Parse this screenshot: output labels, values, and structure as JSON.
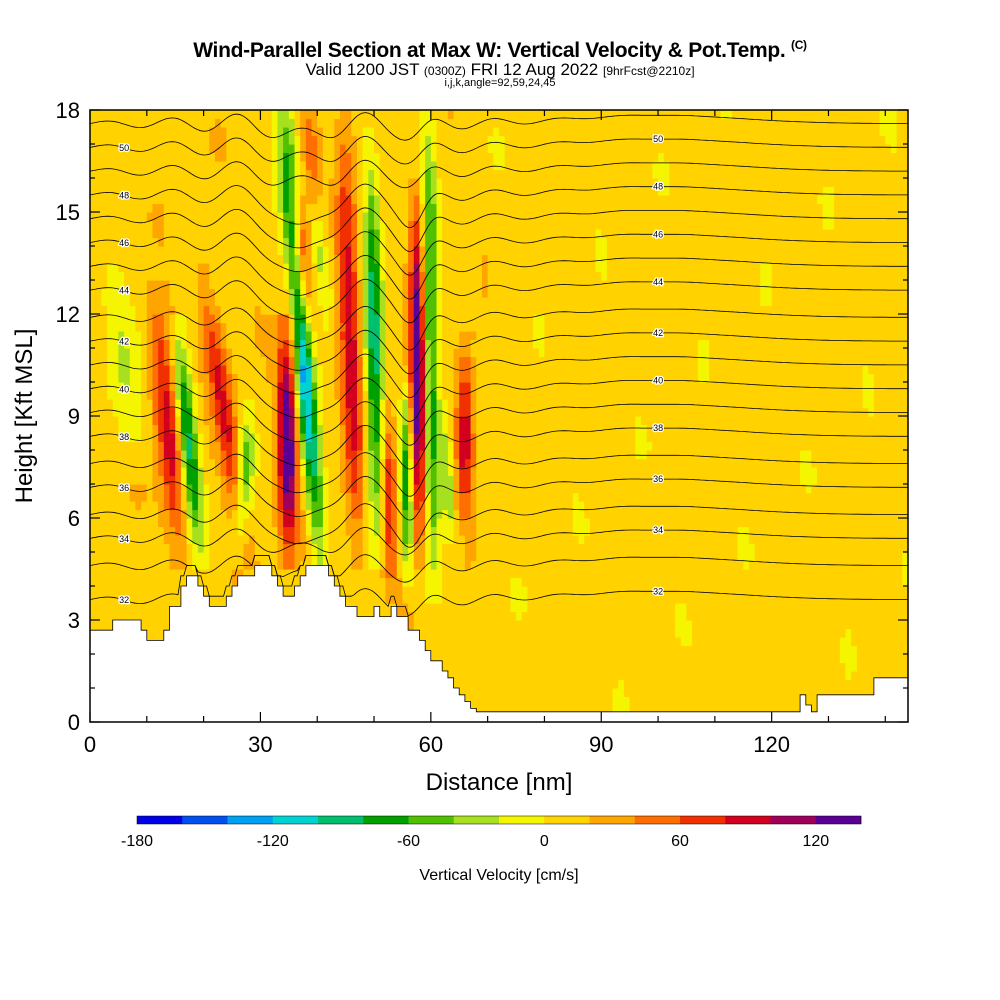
{
  "header": {
    "title_main": "Wind-Parallel Section at Max W: Vertical Velocity & Pot.Temp.",
    "title_mark": "(C)",
    "subtitle_a": "Valid 1200 JST",
    "subtitle_b": "(0300Z)",
    "subtitle_c": "FRI 12 Aug 2022",
    "subtitle_d": "[9hrFcst@2210z]",
    "line3": "i,j,k,angle=92,59,24,45"
  },
  "chart_data": {
    "type": "heatmap",
    "xlabel": "Distance [nm]",
    "ylabel": "Height [Kft MSL]",
    "xlim": [
      0,
      144
    ],
    "ylim": [
      0,
      18
    ],
    "xticks": [
      0,
      30,
      60,
      90,
      120
    ],
    "yticks": [
      0,
      3,
      6,
      9,
      12,
      15,
      18
    ],
    "colorbar": {
      "label": "Vertical Velocity [cm/s]",
      "ticks": [
        -180,
        -120,
        -60,
        0,
        60,
        120
      ],
      "range": [
        -180,
        140
      ],
      "colors": [
        "#0000e6",
        "#0050f0",
        "#00a0f5",
        "#00d2d2",
        "#00c070",
        "#00a000",
        "#50c000",
        "#a6e01e",
        "#f5f500",
        "#ffd200",
        "#ffa500",
        "#ff6e00",
        "#f03000",
        "#d2001e",
        "#a0005a",
        "#5a0096"
      ]
    },
    "terrain": [
      [
        0,
        2.7
      ],
      [
        3,
        2.7
      ],
      [
        4,
        3.0
      ],
      [
        8,
        3.0
      ],
      [
        9,
        2.7
      ],
      [
        10,
        2.4
      ],
      [
        12,
        2.4
      ],
      [
        13,
        2.7
      ],
      [
        14,
        3.4
      ],
      [
        15,
        3.4
      ],
      [
        16,
        4.0
      ],
      [
        17,
        4.3
      ],
      [
        18,
        4.3
      ],
      [
        19,
        4.0
      ],
      [
        20,
        3.7
      ],
      [
        21,
        3.4
      ],
      [
        23,
        3.4
      ],
      [
        24,
        3.7
      ],
      [
        25,
        4.0
      ],
      [
        26,
        4.3
      ],
      [
        28,
        4.3
      ],
      [
        29,
        4.6
      ],
      [
        31,
        4.6
      ],
      [
        32,
        4.3
      ],
      [
        33,
        4.0
      ],
      [
        34,
        3.7
      ],
      [
        35,
        3.7
      ],
      [
        36,
        4.0
      ],
      [
        37,
        4.3
      ],
      [
        38,
        4.6
      ],
      [
        41,
        4.6
      ],
      [
        42,
        4.3
      ],
      [
        43,
        4.0
      ],
      [
        44,
        3.7
      ],
      [
        45,
        3.4
      ],
      [
        46,
        3.4
      ],
      [
        47,
        3.1
      ],
      [
        49,
        3.1
      ],
      [
        50,
        3.4
      ],
      [
        51,
        3.1
      ],
      [
        52,
        3.1
      ],
      [
        53,
        3.4
      ],
      [
        54,
        3.1
      ],
      [
        55,
        3.1
      ],
      [
        56,
        2.7
      ],
      [
        57,
        2.7
      ],
      [
        58,
        2.4
      ],
      [
        59,
        2.1
      ],
      [
        60,
        1.8
      ],
      [
        62,
        1.5
      ],
      [
        63,
        1.3
      ],
      [
        64,
        1.0
      ],
      [
        65,
        0.8
      ],
      [
        66,
        0.6
      ],
      [
        67,
        0.4
      ],
      [
        68,
        0.3
      ],
      [
        124,
        0.3
      ],
      [
        125,
        0.8
      ],
      [
        126,
        0.5
      ],
      [
        127,
        0.3
      ],
      [
        128,
        0.8
      ],
      [
        138,
        1.3
      ],
      [
        144,
        1.3
      ]
    ],
    "updrafts": [
      {
        "x0": 16.2,
        "y0": 4.8,
        "x1": 11.5,
        "y1": 12.5,
        "w": 2.3,
        "peak": 85
      },
      {
        "x0": 27.5,
        "y0": 5.0,
        "x1": 20.0,
        "y1": 13.0,
        "w": 2.0,
        "peak": 75
      },
      {
        "x0": 35.0,
        "y0": 5.0,
        "x1": 34.5,
        "y1": 11.5,
        "w": 1.7,
        "peak": 130
      },
      {
        "x0": 36.5,
        "y0": 11.0,
        "x1": 38.5,
        "y1": 18.0,
        "w": 2.3,
        "peak": 85
      },
      {
        "x0": 47.0,
        "y0": 5.0,
        "x1": 44.5,
        "y1": 18.0,
        "w": 1.8,
        "peak": 80
      },
      {
        "x0": 58.0,
        "y0": 5.0,
        "x1": 57.5,
        "y1": 15.5,
        "w": 1.3,
        "peak": 135
      },
      {
        "x0": 66.0,
        "y0": 6.0,
        "x1": 66.0,
        "y1": 11.0,
        "w": 1.6,
        "peak": 85
      },
      {
        "x0": 53.0,
        "y0": 4.0,
        "x1": 52.5,
        "y1": 9.0,
        "w": 1.2,
        "peak": 70
      }
    ],
    "downdrafts": [
      {
        "x0": 19.0,
        "y0": 5.0,
        "x1": 15.5,
        "y1": 11.5,
        "w": 1.8,
        "peak": -110
      },
      {
        "x0": 8.0,
        "y0": 7.5,
        "x1": 3.0,
        "y1": 14.0,
        "w": 3.0,
        "peak": -35
      },
      {
        "x0": 26.5,
        "y0": 5.0,
        "x1": 27.5,
        "y1": 9.0,
        "w": 1.5,
        "peak": -75
      },
      {
        "x0": 40.5,
        "y0": 4.8,
        "x1": 34.0,
        "y1": 17.5,
        "w": 1.6,
        "peak": -140
      },
      {
        "x0": 42.0,
        "y0": 12.0,
        "x1": 35.0,
        "y1": 18.0,
        "w": 2.0,
        "peak": -70
      },
      {
        "x0": 50.5,
        "y0": 5.0,
        "x1": 49.5,
        "y1": 17.0,
        "w": 1.5,
        "peak": -100
      },
      {
        "x0": 56.0,
        "y0": 4.0,
        "x1": 55.5,
        "y1": 10.0,
        "w": 1.0,
        "peak": -80
      },
      {
        "x0": 60.5,
        "y0": 4.0,
        "x1": 59.5,
        "y1": 18.0,
        "w": 1.4,
        "peak": -90
      },
      {
        "x0": 63.5,
        "y0": 5.0,
        "x1": 62.5,
        "y1": 9.0,
        "w": 1.2,
        "peak": -50
      }
    ],
    "theta_contours": [
      {
        "label": "32",
        "base": 3.6,
        "step": 0
      },
      {
        "label": "",
        "base": 4.6,
        "step": 0
      },
      {
        "label": "34",
        "base": 5.4,
        "step": 1
      },
      {
        "label": "",
        "base": 6.1,
        "step": 0
      },
      {
        "label": "36",
        "base": 6.9,
        "step": 1
      },
      {
        "label": "",
        "base": 7.6,
        "step": 0
      },
      {
        "label": "38",
        "base": 8.4,
        "step": 1
      },
      {
        "label": "",
        "base": 9.1,
        "step": 0
      },
      {
        "label": "40",
        "base": 9.8,
        "step": 1
      },
      {
        "label": "",
        "base": 10.5,
        "step": 0
      },
      {
        "label": "42",
        "base": 11.2,
        "step": 1
      },
      {
        "label": "",
        "base": 11.9,
        "step": 0
      },
      {
        "label": "44",
        "base": 12.7,
        "step": 1
      },
      {
        "label": "",
        "base": 13.4,
        "step": 0
      },
      {
        "label": "46",
        "base": 14.1,
        "step": 1
      },
      {
        "label": "",
        "base": 14.8,
        "step": 0
      },
      {
        "label": "48",
        "base": 15.5,
        "step": 1
      },
      {
        "label": "",
        "base": 16.2,
        "step": 0
      },
      {
        "label": "50",
        "base": 16.9,
        "step": 1
      },
      {
        "label": "",
        "base": 17.6,
        "step": 0
      }
    ]
  }
}
